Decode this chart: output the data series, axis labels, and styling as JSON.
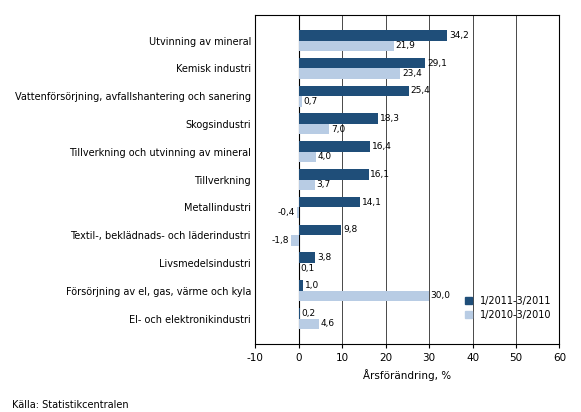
{
  "categories": [
    "El- och elektronikindustri",
    "Försörjning av el, gas, värme och kyla",
    "Livsmedelsindustri",
    "Textil-, beklädnads- och läderindustri",
    "Metallindustri",
    "Tillverkning",
    "Tillverkning och utvinning av mineral",
    "Skogsindustri",
    "Vattenförsörjning, avfallshantering och sanering",
    "Kemisk industri",
    "Utvinning av mineral"
  ],
  "values_2011": [
    0.2,
    1.0,
    3.8,
    9.8,
    14.1,
    16.1,
    16.4,
    18.3,
    25.4,
    29.1,
    34.2
  ],
  "values_2010": [
    4.6,
    30.0,
    0.1,
    -1.8,
    -0.4,
    3.7,
    4.0,
    7.0,
    0.7,
    23.4,
    21.9
  ],
  "labels_2011": [
    "0,2",
    "1,0",
    "3,8",
    "9,8",
    "14,1",
    "16,1",
    "16,4",
    "18,3",
    "25,4",
    "29,1",
    "34,2"
  ],
  "labels_2010": [
    "4,6",
    "30,0",
    "0,1",
    "-1,8",
    "-0,4",
    "3,7",
    "4,0",
    "7,0",
    "0,7",
    "23,4",
    "21,9"
  ],
  "color_2011": "#1F4E79",
  "color_2010": "#B8CCE4",
  "xlabel": "Årsförändring, %",
  "legend_2011": "1/2011-3/2011",
  "legend_2010": "1/2010-3/2010",
  "source": "Källa: Statistikcentralen",
  "xlim": [
    -10,
    60
  ],
  "xticks": [
    -10,
    0,
    10,
    20,
    30,
    40,
    50,
    60
  ],
  "bar_height": 0.38,
  "fontsize_labels": 7.0,
  "fontsize_values": 6.5,
  "fontsize_axis": 7.5,
  "fontsize_legend": 7.0,
  "fontsize_source": 7.0
}
